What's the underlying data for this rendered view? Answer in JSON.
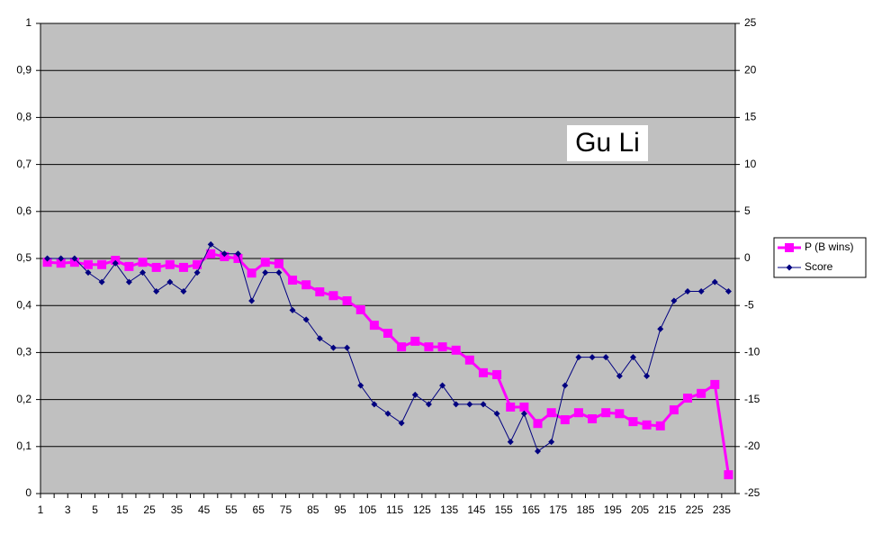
{
  "chart_data": {
    "type": "line",
    "annotation": "Gu Li",
    "categories": [
      1,
      null,
      3,
      null,
      5,
      null,
      15,
      null,
      25,
      null,
      35,
      null,
      45,
      null,
      55,
      null,
      65,
      null,
      75,
      null,
      85,
      null,
      95,
      null,
      105,
      null,
      115,
      null,
      125,
      null,
      135,
      null,
      145,
      null,
      155,
      null,
      165,
      null,
      175,
      null,
      185,
      null,
      195,
      null,
      205,
      null,
      215,
      null,
      225,
      null,
      235
    ],
    "series": [
      {
        "name": "P (B wins)",
        "color": "#ff00ff",
        "marker": "square",
        "values": [
          0.492,
          0.49,
          0.492,
          0.487,
          0.487,
          0.496,
          0.483,
          0.492,
          0.481,
          0.487,
          0.481,
          0.487,
          0.51,
          0.504,
          0.5,
          0.469,
          0.492,
          0.489,
          0.454,
          0.444,
          0.429,
          0.421,
          0.41,
          0.391,
          0.358,
          0.341,
          0.312,
          0.324,
          0.312,
          0.312,
          0.305,
          0.284,
          0.257,
          0.253,
          0.184,
          0.184,
          0.149,
          0.172,
          0.157,
          0.172,
          0.159,
          0.172,
          0.17,
          0.153,
          0.146,
          0.144,
          0.178,
          0.203,
          0.213,
          0.232,
          0.04
        ]
      },
      {
        "name": "Score",
        "color": "#000080",
        "marker": "diamond",
        "axis": "y2",
        "values": [
          0,
          0,
          0,
          -1.5,
          -2.5,
          -0.5,
          -2.5,
          -1.5,
          -3.5,
          -2.5,
          -3.5,
          -1.5,
          1.5,
          0.5,
          0.5,
          -4.5,
          -1.5,
          -1.5,
          -5.5,
          -6.5,
          -8.5,
          -9.5,
          -9.5,
          -13.5,
          -15.5,
          -16.5,
          -17.5,
          -14.5,
          -15.5,
          -13.5,
          -15.5,
          -15.5,
          -15.5,
          -16.5,
          -19.5,
          -16.5,
          -20.5,
          -19.5,
          -13.5,
          -10.5,
          -10.5,
          -10.5,
          -12.5,
          -10.5,
          -12.5,
          -7.5,
          -4.5,
          -3.5,
          -3.5,
          -2.5,
          -3.5
        ]
      }
    ],
    "ylim": [
      0,
      1
    ],
    "yticks": [
      0,
      {
        "value": 0.1,
        "label": "0,1"
      },
      {
        "value": 0.2,
        "label": "0,2"
      },
      {
        "value": 0.3,
        "label": "0,3"
      },
      {
        "value": 0.4,
        "label": "0,4"
      },
      {
        "value": 0.5,
        "label": "0,5"
      },
      {
        "value": 0.6,
        "label": "0,6"
      },
      {
        "value": 0.7,
        "label": "0,7"
      },
      {
        "value": 0.8,
        "label": "0,8"
      },
      {
        "value": 0.9,
        "label": "0,9"
      },
      1
    ],
    "y2lim": [
      -25,
      25
    ],
    "y2ticks": [
      -25,
      -20,
      -15,
      -10,
      -5,
      0,
      5,
      10,
      15,
      20,
      25
    ],
    "grid": true,
    "legend": "right"
  }
}
